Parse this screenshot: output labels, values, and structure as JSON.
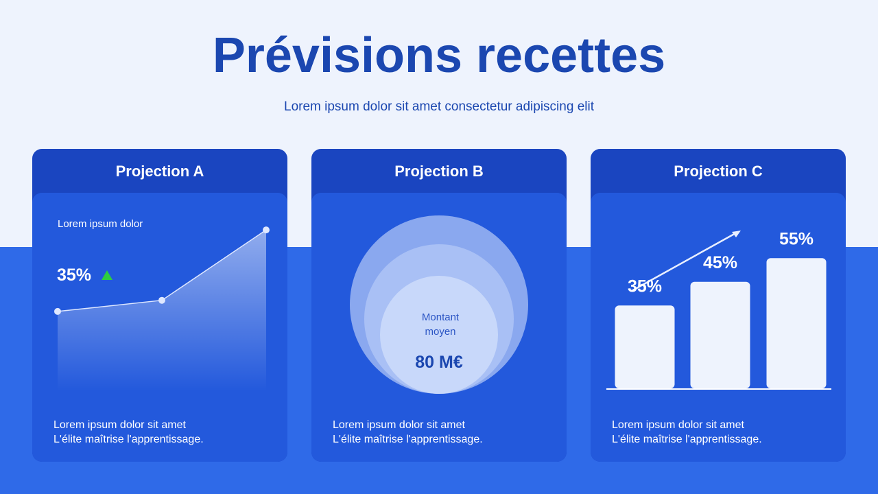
{
  "header": {
    "title": "Prévisions recettes",
    "subtitle": "Lorem ipsum dolor sit amet consectetur adipiscing elit"
  },
  "cards": [
    {
      "title": "Projection A",
      "label": "Lorem ipsum dolor",
      "value": "35%",
      "chart": {
        "type": "line",
        "values": [
          43,
          49,
          87
        ],
        "ylim": [
          0,
          100
        ]
      },
      "lines": [
        "Lorem ipsum dolor sit amet",
        "L'élite maîtrise l'apprentissage."
      ]
    },
    {
      "title": "Projection B",
      "label": "Montant moyen",
      "value": "80 M€",
      "lines": [
        "Lorem ipsum dolor sit amet",
        "L'élite maîtrise l'apprentissage."
      ]
    },
    {
      "title": "Projection C",
      "chart": {
        "type": "bar",
        "values": [
          35,
          45,
          55
        ],
        "value_labels": [
          "35%",
          "45%",
          "55%"
        ],
        "ylim": [
          0,
          60
        ]
      },
      "lines": [
        "Lorem ipsum dolor sit amet",
        "L'élite maîtrise l'apprentissage."
      ]
    }
  ]
}
